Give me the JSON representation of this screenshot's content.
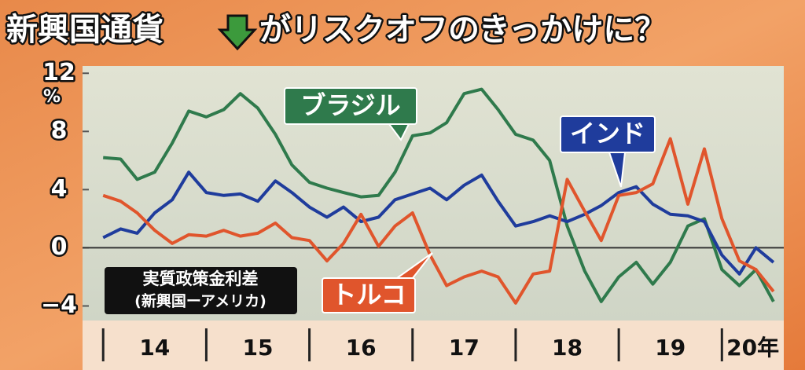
{
  "chart_data": {
    "type": "line",
    "title": [
      "新興国通貨",
      "がリスクオフのきっかけに？"
    ],
    "y_unit": "%",
    "legend_note": [
      "実質政策金利差",
      "(新興国ーアメリカ)"
    ],
    "x": [
      14,
      14.17,
      14.33,
      14.5,
      14.67,
      14.83,
      15,
      15.17,
      15.33,
      15.5,
      15.67,
      15.83,
      16,
      16.17,
      16.33,
      16.5,
      16.67,
      16.83,
      17,
      17.17,
      17.33,
      17.5,
      17.67,
      17.83,
      18,
      18.17,
      18.33,
      18.5,
      18.67,
      18.83,
      19,
      19.17,
      19.33,
      19.5,
      19.67,
      19.83,
      20,
      20.17,
      20.33,
      20.5
    ],
    "xlim": [
      13.8,
      20.6
    ],
    "xticks": [
      14,
      15,
      16,
      17,
      18,
      19,
      20
    ],
    "xtick_labels": [
      "14",
      "15",
      "16",
      "17",
      "18",
      "19",
      "20年"
    ],
    "ylim": [
      -5,
      12.5
    ],
    "yticks": [
      12,
      8,
      4,
      0,
      {
        "value": -4,
        "label": "−4"
      }
    ],
    "zero_line": true,
    "series": [
      {
        "name": "ブラジル",
        "color": "#2f7a4c",
        "values": [
          6.2,
          6.1,
          4.7,
          5.2,
          7.2,
          9.4,
          9.0,
          9.5,
          10.6,
          9.6,
          7.8,
          5.7,
          4.5,
          4.1,
          3.8,
          3.5,
          3.6,
          5.2,
          7.7,
          7.9,
          8.6,
          10.6,
          10.9,
          9.5,
          7.8,
          7.4,
          6.0,
          1.5,
          -1.6,
          -3.7,
          -2.0,
          -1.0,
          -2.5,
          -1.0,
          1.5,
          2.0,
          -1.5,
          -2.6,
          -1.5,
          -3.7
        ]
      },
      {
        "name": "インド",
        "color": "#1f3c9c",
        "values": [
          0.7,
          1.3,
          1.0,
          2.4,
          3.3,
          5.2,
          3.8,
          3.6,
          3.7,
          3.2,
          4.6,
          3.8,
          2.8,
          2.1,
          2.8,
          1.8,
          2.1,
          3.3,
          3.7,
          4.1,
          3.3,
          4.3,
          5.0,
          3.2,
          1.5,
          1.8,
          2.2,
          1.8,
          2.3,
          2.9,
          3.8,
          4.2,
          3.0,
          2.3,
          2.2,
          1.8,
          -0.5,
          -1.8,
          0,
          -1.0
        ]
      },
      {
        "name": "トルコ",
        "color": "#e0552c",
        "values": [
          3.6,
          3.2,
          2.4,
          1.2,
          0.3,
          0.9,
          0.8,
          1.2,
          0.8,
          1.0,
          1.7,
          0.7,
          0.5,
          -0.9,
          0.3,
          2.3,
          0.1,
          1.5,
          2.4,
          -0.5,
          -2.6,
          -2.0,
          -1.6,
          -2.0,
          -3.8,
          -1.8,
          -1.6,
          4.7,
          2.5,
          0.5,
          3.6,
          3.8,
          4.4,
          7.5,
          3.0,
          6.8,
          2.0,
          -0.9,
          -1.5,
          -3.0
        ]
      }
    ]
  }
}
